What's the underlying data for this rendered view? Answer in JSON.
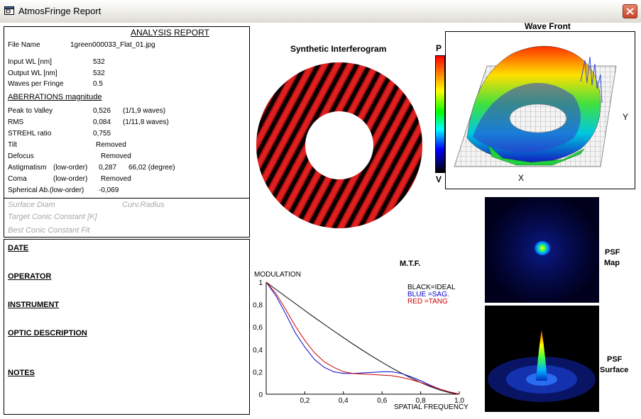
{
  "window": {
    "title": "AtmosFringe  Report"
  },
  "report": {
    "heading": "ANALYSIS  REPORT",
    "file_name_label": "File Name",
    "file_name": "1green000033_Flat_01.jpg",
    "params": [
      {
        "label": "Input  WL [nm]",
        "value": "532"
      },
      {
        "label": "Output WL [nm]",
        "value": "532"
      },
      {
        "label": "Waves per Fringe",
        "value": "0.5"
      }
    ],
    "aberrations_heading": "ABERRATIONS magnitude",
    "aberrations": {
      "peak_to_valley": {
        "label": "Peak to Valley",
        "value": "0,526",
        "note": "(1/1,9 waves)"
      },
      "rms": {
        "label": "RMS",
        "value": "0,084",
        "note": "(1/11,8 waves)"
      },
      "strehl": {
        "label": "STREHL ratio",
        "value": "0,755"
      },
      "tilt": {
        "label": "Tilt",
        "value": "Removed"
      },
      "defocus": {
        "label": "Defocus",
        "value": "Removed"
      },
      "astigmatism": {
        "label": "Astigmatism",
        "qual": "(low-order)",
        "value": "0,287",
        "extra": "66,02  (degree)"
      },
      "coma": {
        "label": "Coma",
        "qual": "(low-order)",
        "value": "Removed"
      },
      "spherical": {
        "label": "Spherical Ab.(low-order)",
        "value": "-0,069"
      }
    },
    "surface_diam": "Surface Diam",
    "curv_radius": "Curv.Radius",
    "target_conic": "Target Conic Constant [K]",
    "best_conic": "Best Conic Constant Fit"
  },
  "info": {
    "date": "DATE",
    "operator": "OPERATOR",
    "instrument": "INSTRUMENT",
    "optic_description": "OPTIC DESCRIPTION",
    "notes": "NOTES"
  },
  "interferogram": {
    "title": "Synthetic Interferogram",
    "colorbar_top": "P",
    "colorbar_bottom": "V"
  },
  "wavefront": {
    "title": "Wave Front",
    "axis_x": "X",
    "axis_y": "Y"
  },
  "psf": {
    "map_label_1": "PSF",
    "map_label_2": "Map",
    "surface_label_1": "PSF",
    "surface_label_2": "Surface"
  },
  "mtf": {
    "title": "M.T.F.",
    "ylabel": "MODULATION",
    "xlabel": "SPATIAL FREQUENCY",
    "legend": [
      {
        "text": "BLACK=IDEAL",
        "color": "#000000"
      },
      {
        "text": "BLUE  =SAG.",
        "color": "#0000cc"
      },
      {
        "text": "RED    =TANG",
        "color": "#cc0000"
      }
    ]
  },
  "chart_data": {
    "type": "line",
    "title": "M.T.F.",
    "xlabel": "SPATIAL FREQUENCY",
    "ylabel": "MODULATION",
    "xlim": [
      0,
      1.0
    ],
    "ylim": [
      0,
      1
    ],
    "x_ticks": [
      "0,2",
      "0,4",
      "0,6",
      "0,8",
      "1,0"
    ],
    "y_ticks": [
      "0",
      "0,2",
      "0,4",
      "0,6",
      "0,8",
      "1"
    ],
    "x": [
      0,
      0.05,
      0.1,
      0.15,
      0.2,
      0.25,
      0.3,
      0.35,
      0.4,
      0.45,
      0.5,
      0.55,
      0.6,
      0.65,
      0.7,
      0.75,
      0.8,
      0.85,
      0.9,
      0.95,
      1.0
    ],
    "series": [
      {
        "name": "BLACK=IDEAL",
        "color": "#000000",
        "values": [
          1.0,
          0.936,
          0.873,
          0.81,
          0.747,
          0.685,
          0.624,
          0.564,
          0.505,
          0.447,
          0.391,
          0.337,
          0.285,
          0.235,
          0.188,
          0.144,
          0.104,
          0.068,
          0.037,
          0.013,
          0.0
        ]
      },
      {
        "name": "BLUE  =SAG.",
        "color": "#0000cc",
        "values": [
          1.0,
          0.88,
          0.72,
          0.55,
          0.42,
          0.31,
          0.24,
          0.2,
          0.185,
          0.185,
          0.19,
          0.195,
          0.2,
          0.2,
          0.185,
          0.155,
          0.12,
          0.08,
          0.045,
          0.02,
          0.0
        ]
      },
      {
        "name": "RED    =TANG",
        "color": "#cc0000",
        "values": [
          1.0,
          0.9,
          0.76,
          0.61,
          0.48,
          0.37,
          0.29,
          0.24,
          0.2,
          0.185,
          0.18,
          0.175,
          0.17,
          0.165,
          0.15,
          0.13,
          0.105,
          0.075,
          0.045,
          0.02,
          0.0
        ]
      }
    ],
    "grid": false,
    "legend_position": "top-right"
  }
}
